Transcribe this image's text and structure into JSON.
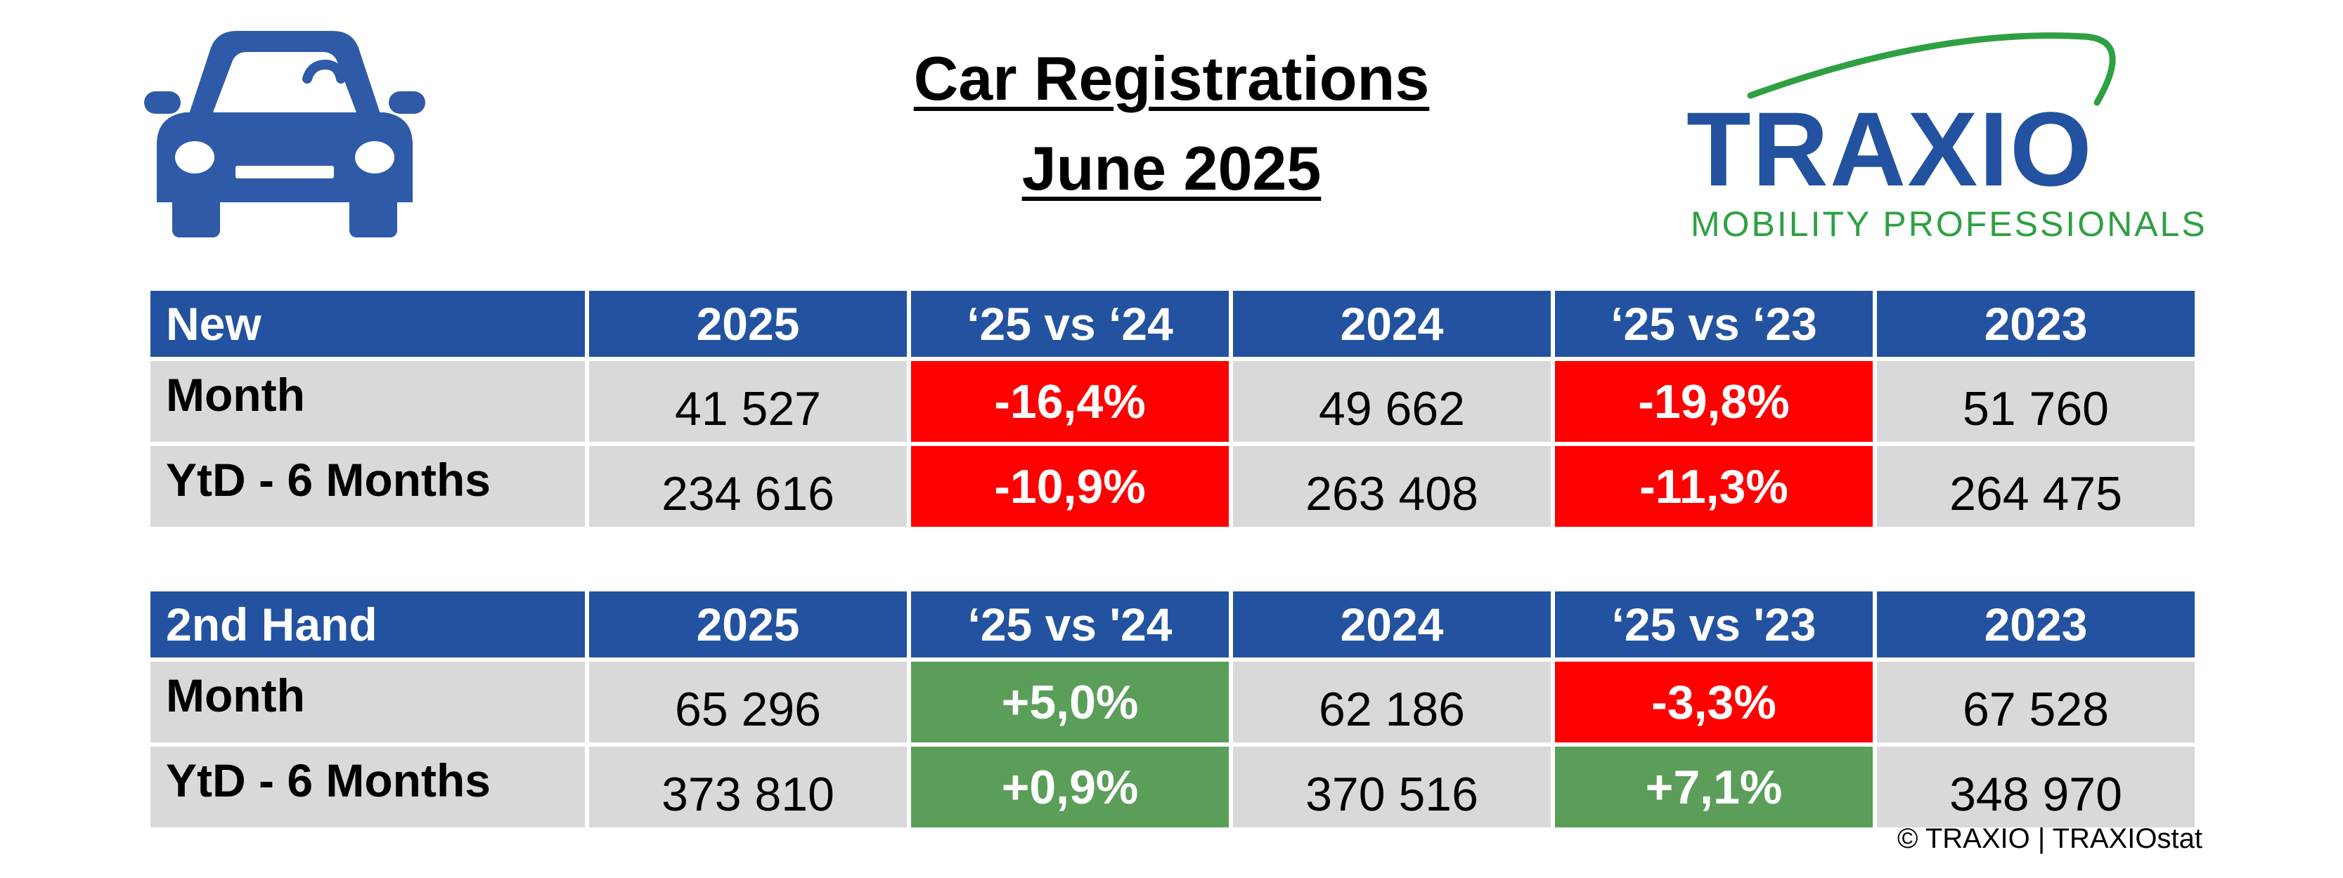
{
  "title": {
    "line1": "Car Registrations",
    "line2": "June 2025"
  },
  "logo": {
    "brand": "TRAXIO",
    "tagline": "MOBILITY PROFESSIONALS"
  },
  "icons": {
    "car": "car-icon"
  },
  "colors": {
    "header_blue": "#2352a0",
    "negative_red": "#ff0000",
    "positive_green": "#5a9e5a",
    "row_grey": "#d9d9d9",
    "logo_green": "#2ea043"
  },
  "tables": [
    {
      "headers": [
        "New",
        "2025",
        "‘25 vs ‘24",
        "2024",
        "‘25 vs ‘23",
        "2023"
      ],
      "rows": [
        {
          "label": "Month",
          "v2025": "41 527",
          "vs24": "-16,4%",
          "v2024": "49 662",
          "vs23": "-19,8%",
          "v2023": "51 760"
        },
        {
          "label": "YtD - 6 Months",
          "v2025": "234 616",
          "vs24": "-10,9%",
          "v2024": "263 408",
          "vs23": "-11,3%",
          "v2023": "264 475"
        }
      ]
    },
    {
      "headers": [
        "2nd Hand",
        "2025",
        "‘25 vs '24",
        "2024",
        "‘25 vs '23",
        "2023"
      ],
      "rows": [
        {
          "label": "Month",
          "v2025": "65 296",
          "vs24": "+5,0%",
          "v2024": "62 186",
          "vs23": "-3,3%",
          "v2023": "67 528"
        },
        {
          "label": "YtD - 6 Months",
          "v2025": "373 810",
          "vs24": "+0,9%",
          "v2024": "370 516",
          "vs23": "+7,1%",
          "v2023": "348 970"
        }
      ]
    }
  ],
  "credit": "© TRAXIO | TRAXIOstat"
}
